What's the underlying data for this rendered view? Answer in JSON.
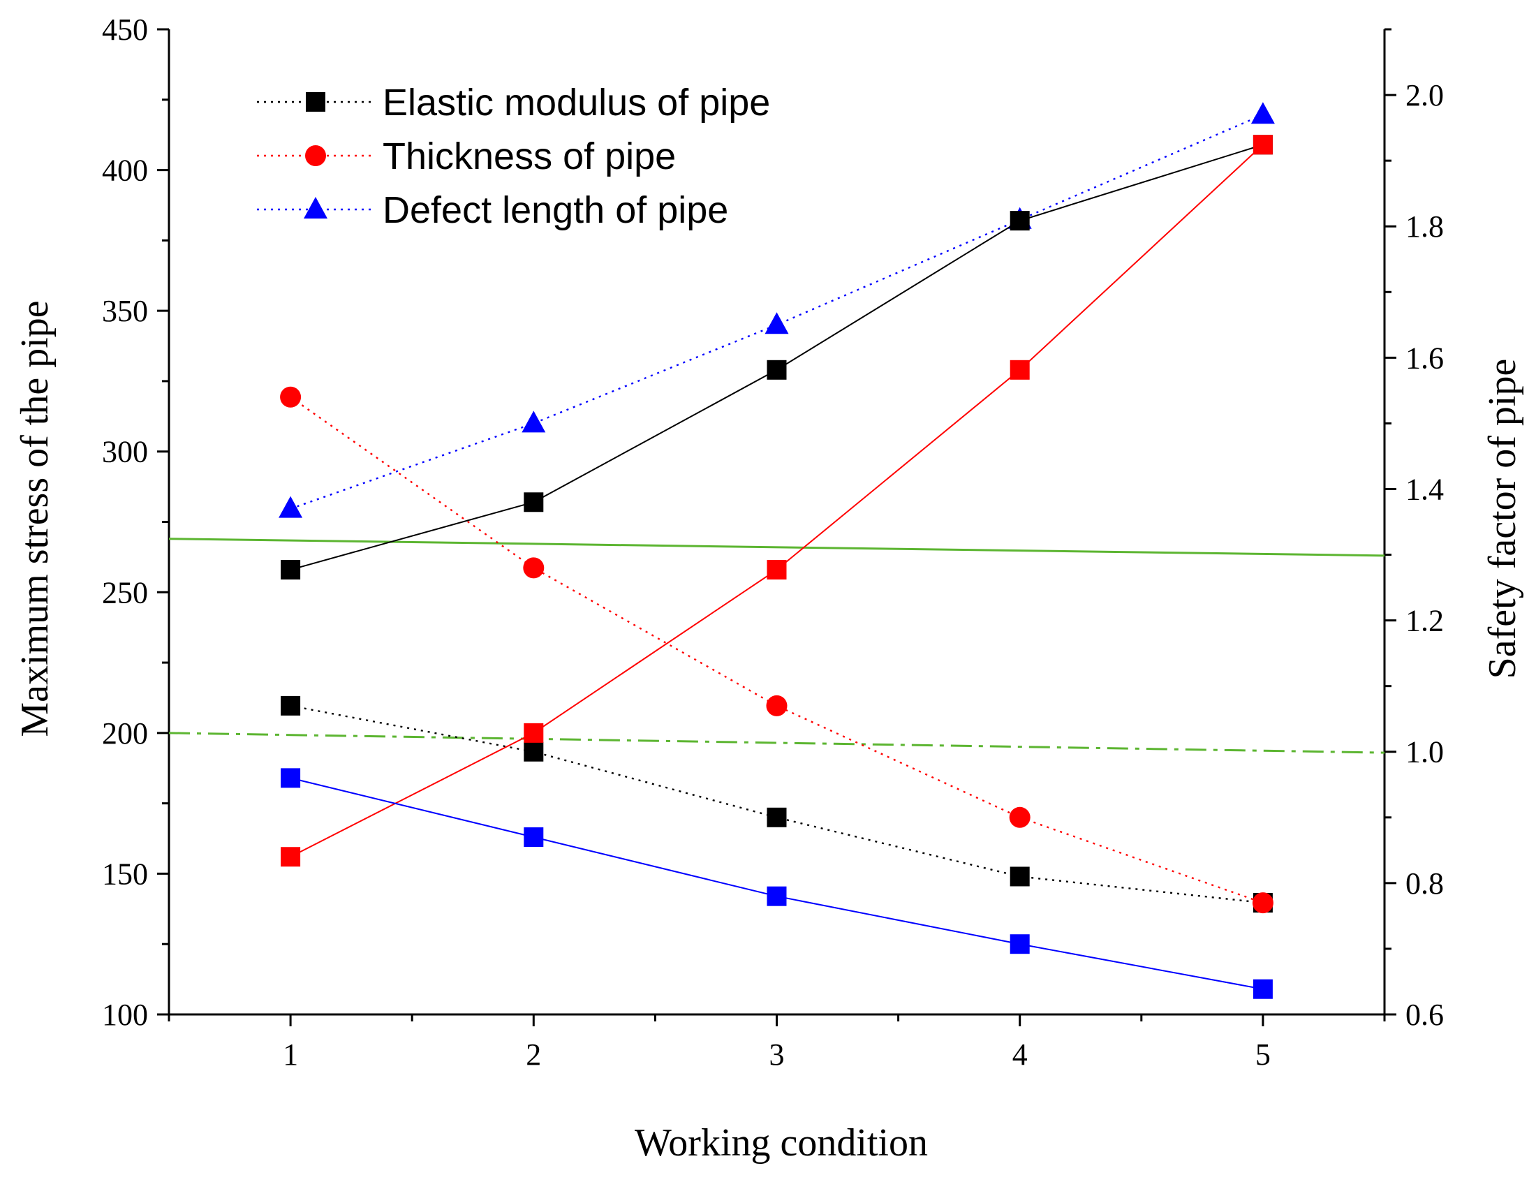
{
  "chart_data": {
    "type": "line",
    "title": "",
    "xlabel": "Working condition",
    "ylabel": "Maximum stress of the pipe",
    "y2label": "Safety factor of pipe",
    "x": [
      1,
      2,
      3,
      4,
      5
    ],
    "x_tick_labels": [
      "1",
      "2",
      "3",
      "4",
      "5"
    ],
    "xlim": [
      0.5,
      5.5
    ],
    "ylim": [
      100,
      450
    ],
    "y_ticks": [
      100,
      150,
      200,
      250,
      300,
      350,
      400,
      450
    ],
    "y_tick_labels": [
      "100",
      "150",
      "200",
      "250",
      "300",
      "350",
      "400",
      "450"
    ],
    "y2lim": [
      0.6,
      2.1
    ],
    "y2_ticks": [
      0.6,
      0.8,
      1.0,
      1.2,
      1.4,
      1.6,
      1.8,
      2.0
    ],
    "y2_tick_labels": [
      "0.6",
      "0.8",
      "1.0",
      "1.2",
      "1.4",
      "1.6",
      "1.8",
      "2.0"
    ],
    "legend": {
      "placement": "top-left",
      "entries": [
        "Elastic modulus of pipe",
        "Thickness of pipe",
        "Defect length of pipe"
      ]
    },
    "series": [
      {
        "name": "Elastic modulus of pipe",
        "quantity": "safety factor",
        "axis": "right",
        "color": "#000000",
        "marker": "square",
        "line": "dotted",
        "in_legend": true,
        "values": [
          1.07,
          1.0,
          0.9,
          0.81,
          0.77
        ]
      },
      {
        "name": "Thickness of pipe",
        "quantity": "safety factor",
        "axis": "right",
        "color": "#ff0000",
        "marker": "circle",
        "line": "dotted",
        "in_legend": true,
        "values": [
          1.54,
          1.28,
          1.07,
          0.9,
          0.77
        ]
      },
      {
        "name": "Defect length of pipe",
        "quantity": "safety factor",
        "axis": "right",
        "color": "#0000ff",
        "marker": "triangle",
        "line": "dotted",
        "in_legend": true,
        "values": [
          1.37,
          1.5,
          1.65,
          1.81,
          1.97
        ]
      },
      {
        "name": "Elastic modulus of pipe",
        "quantity": "maximum stress",
        "axis": "left",
        "color": "#000000",
        "marker": "square",
        "line": "solid",
        "in_legend": false,
        "values": [
          258,
          282,
          329,
          382,
          409
        ]
      },
      {
        "name": "Thickness of pipe",
        "quantity": "maximum stress",
        "axis": "left",
        "color": "#ff0000",
        "marker": "square",
        "line": "solid",
        "in_legend": false,
        "values": [
          156,
          200,
          258,
          329,
          409
        ]
      },
      {
        "name": "Defect length of pipe",
        "quantity": "maximum stress",
        "axis": "left",
        "color": "#0000ff",
        "marker": "square",
        "line": "solid",
        "in_legend": false,
        "values": [
          184,
          163,
          142,
          125,
          109
        ]
      }
    ],
    "reference_lines": [
      {
        "name": "stress reference",
        "axis": "left",
        "style": "solid",
        "color": "#5cb531",
        "x": [
          0.5,
          5.5
        ],
        "values": [
          269,
          263
        ]
      },
      {
        "name": "safety factor reference",
        "axis": "left",
        "style": "dash-dot",
        "color": "#5cb531",
        "x": [
          0.5,
          5.5
        ],
        "values": [
          200,
          193
        ]
      }
    ]
  }
}
